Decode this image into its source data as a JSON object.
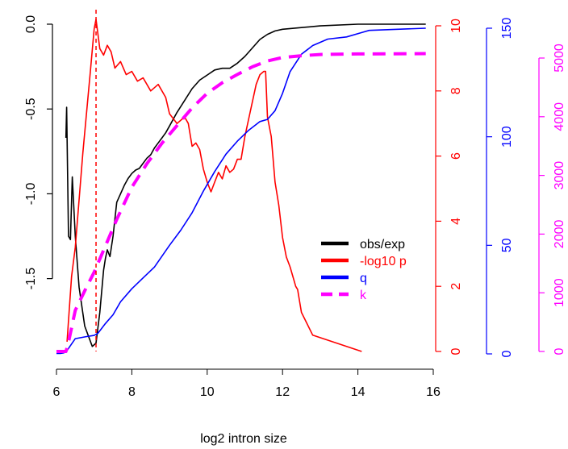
{
  "chart_data": {
    "type": "line",
    "title": "",
    "xlabel": "log2 intron size",
    "xlim": [
      6,
      16
    ],
    "x_ticks": [
      "6",
      "8",
      "10",
      "12",
      "14",
      "16"
    ],
    "reference_line": {
      "x": 7.05,
      "style": "dashed",
      "color": "#ff0000"
    },
    "axes": [
      {
        "id": "left",
        "label": "",
        "color": "#000000",
        "range": [
          -1.92,
          0.0
        ],
        "ticks": [
          "-1.5",
          "-1.0",
          "-0.5",
          "0.0"
        ],
        "tick_values": [
          -1.5,
          -1.0,
          -0.5,
          0.0
        ],
        "rotated_labels": true
      },
      {
        "id": "red",
        "label": "",
        "color": "#ff0000",
        "range": [
          0,
          10
        ],
        "ticks": [
          "0",
          "2",
          "4",
          "6",
          "8",
          "10"
        ],
        "tick_values": [
          0,
          2,
          4,
          6,
          8,
          10
        ]
      },
      {
        "id": "blue",
        "label": "",
        "color": "#0000ff",
        "range": [
          0,
          150
        ],
        "ticks": [
          "0",
          "50",
          "100",
          "150"
        ],
        "tick_values": [
          0,
          50,
          100,
          150
        ]
      },
      {
        "id": "magenta",
        "label": "",
        "color": "#ff00ff",
        "range": [
          0,
          5000
        ],
        "ticks": [
          "0",
          "1000",
          "2000",
          "3000",
          "4000",
          "5000"
        ],
        "tick_values": [
          0,
          1000,
          2000,
          3000,
          4000,
          5000
        ]
      }
    ],
    "series": [
      {
        "name": "obs/exp",
        "axis": "left",
        "color": "#000000",
        "dashed": false,
        "points": [
          [
            6.25,
            -0.67
          ],
          [
            6.27,
            -0.49
          ],
          [
            6.32,
            -1.25
          ],
          [
            6.37,
            -1.27
          ],
          [
            6.42,
            -0.9
          ],
          [
            6.5,
            -1.25
          ],
          [
            6.6,
            -1.55
          ],
          [
            6.75,
            -1.78
          ],
          [
            6.95,
            -1.9
          ],
          [
            7.05,
            -1.88
          ],
          [
            7.15,
            -1.7
          ],
          [
            7.25,
            -1.45
          ],
          [
            7.3,
            -1.38
          ],
          [
            7.35,
            -1.33
          ],
          [
            7.42,
            -1.37
          ],
          [
            7.5,
            -1.25
          ],
          [
            7.6,
            -1.05
          ],
          [
            7.7,
            -1.0
          ],
          [
            7.8,
            -0.95
          ],
          [
            7.9,
            -0.91
          ],
          [
            8.0,
            -0.88
          ],
          [
            8.1,
            -0.86
          ],
          [
            8.2,
            -0.85
          ],
          [
            8.3,
            -0.82
          ],
          [
            8.4,
            -0.79
          ],
          [
            8.5,
            -0.77
          ],
          [
            8.6,
            -0.73
          ],
          [
            8.7,
            -0.7
          ],
          [
            8.8,
            -0.67
          ],
          [
            8.9,
            -0.64
          ],
          [
            9.0,
            -0.6
          ],
          [
            9.2,
            -0.52
          ],
          [
            9.4,
            -0.45
          ],
          [
            9.6,
            -0.38
          ],
          [
            9.8,
            -0.33
          ],
          [
            10.0,
            -0.3
          ],
          [
            10.2,
            -0.27
          ],
          [
            10.4,
            -0.26
          ],
          [
            10.6,
            -0.26
          ],
          [
            10.8,
            -0.23
          ],
          [
            11.0,
            -0.19
          ],
          [
            11.2,
            -0.14
          ],
          [
            11.4,
            -0.09
          ],
          [
            11.6,
            -0.06
          ],
          [
            11.8,
            -0.04
          ],
          [
            12.0,
            -0.03
          ],
          [
            12.5,
            -0.02
          ],
          [
            13.0,
            -0.01
          ],
          [
            14.0,
            0.0
          ],
          [
            15.8,
            0.0
          ]
        ]
      },
      {
        "name": "-log10 p",
        "axis": "red",
        "color": "#ff0000",
        "dashed": false,
        "points": [
          [
            6.28,
            0.3
          ],
          [
            6.4,
            2.3
          ],
          [
            6.5,
            3.2
          ],
          [
            6.7,
            6.1
          ],
          [
            6.9,
            8.6
          ],
          [
            7.0,
            9.9
          ],
          [
            7.05,
            10.2
          ],
          [
            7.15,
            9.3
          ],
          [
            7.25,
            9.1
          ],
          [
            7.35,
            9.4
          ],
          [
            7.45,
            9.2
          ],
          [
            7.55,
            8.7
          ],
          [
            7.7,
            8.9
          ],
          [
            7.85,
            8.5
          ],
          [
            8.0,
            8.6
          ],
          [
            8.15,
            8.3
          ],
          [
            8.3,
            8.4
          ],
          [
            8.5,
            8.0
          ],
          [
            8.7,
            8.2
          ],
          [
            8.9,
            7.8
          ],
          [
            9.0,
            7.3
          ],
          [
            9.2,
            7.0
          ],
          [
            9.4,
            7.2
          ],
          [
            9.5,
            7.0
          ],
          [
            9.6,
            6.3
          ],
          [
            9.7,
            6.4
          ],
          [
            9.8,
            6.2
          ],
          [
            9.9,
            5.6
          ],
          [
            10.0,
            5.2
          ],
          [
            10.1,
            4.9
          ],
          [
            10.2,
            5.2
          ],
          [
            10.3,
            5.5
          ],
          [
            10.4,
            5.3
          ],
          [
            10.5,
            5.7
          ],
          [
            10.6,
            5.5
          ],
          [
            10.7,
            5.6
          ],
          [
            10.8,
            5.9
          ],
          [
            10.9,
            5.9
          ],
          [
            11.0,
            6.6
          ],
          [
            11.15,
            7.4
          ],
          [
            11.3,
            8.2
          ],
          [
            11.4,
            8.5
          ],
          [
            11.5,
            8.6
          ],
          [
            11.55,
            8.6
          ],
          [
            11.6,
            7.2
          ],
          [
            11.7,
            6.6
          ],
          [
            11.8,
            5.2
          ],
          [
            11.9,
            4.5
          ],
          [
            12.0,
            3.5
          ],
          [
            12.1,
            2.9
          ],
          [
            12.2,
            2.6
          ],
          [
            12.3,
            2.2
          ],
          [
            12.35,
            2.0
          ],
          [
            12.4,
            1.9
          ],
          [
            12.5,
            1.2
          ],
          [
            12.8,
            0.5
          ],
          [
            14.1,
            0.0
          ]
        ]
      },
      {
        "name": "q",
        "axis": "blue",
        "color": "#0000ff",
        "dashed": false,
        "points": [
          [
            6.0,
            0.2
          ],
          [
            6.1,
            0.2
          ],
          [
            6.2,
            0.5
          ],
          [
            6.3,
            2.0
          ],
          [
            6.5,
            7.0
          ],
          [
            6.8,
            8.0
          ],
          [
            7.0,
            8.5
          ],
          [
            7.1,
            9.5
          ],
          [
            7.3,
            14
          ],
          [
            7.5,
            18
          ],
          [
            7.7,
            24
          ],
          [
            8.0,
            30
          ],
          [
            8.3,
            35
          ],
          [
            8.6,
            40
          ],
          [
            9.0,
            50
          ],
          [
            9.3,
            57
          ],
          [
            9.6,
            65
          ],
          [
            9.9,
            75
          ],
          [
            10.2,
            84
          ],
          [
            10.5,
            92
          ],
          [
            10.8,
            98
          ],
          [
            11.1,
            103
          ],
          [
            11.4,
            107
          ],
          [
            11.6,
            108
          ],
          [
            11.8,
            112
          ],
          [
            12.0,
            120
          ],
          [
            12.2,
            130
          ],
          [
            12.5,
            138
          ],
          [
            12.8,
            142
          ],
          [
            13.2,
            145
          ],
          [
            13.7,
            146
          ],
          [
            14.1,
            148
          ],
          [
            14.3,
            149
          ],
          [
            15.8,
            150
          ]
        ]
      },
      {
        "name": "k",
        "axis": "magenta",
        "color": "#ff00ff",
        "dashed": true,
        "points": [
          [
            6.0,
            0
          ],
          [
            6.25,
            0
          ],
          [
            6.3,
            100
          ],
          [
            6.5,
            700
          ],
          [
            6.8,
            1100
          ],
          [
            7.0,
            1350
          ],
          [
            7.3,
            1800
          ],
          [
            7.6,
            2250
          ],
          [
            8.0,
            2800
          ],
          [
            8.4,
            3200
          ],
          [
            8.8,
            3550
          ],
          [
            9.2,
            3850
          ],
          [
            9.6,
            4150
          ],
          [
            10.0,
            4400
          ],
          [
            10.4,
            4580
          ],
          [
            10.8,
            4720
          ],
          [
            11.2,
            4850
          ],
          [
            11.6,
            4950
          ],
          [
            12.0,
            5010
          ],
          [
            12.5,
            5040
          ],
          [
            13.0,
            5060
          ],
          [
            14.0,
            5070
          ],
          [
            15.8,
            5075
          ]
        ]
      }
    ],
    "legend": {
      "position": "center-right",
      "entries": [
        {
          "label": "obs/exp",
          "color": "#000000",
          "dashed": false
        },
        {
          "label": "-log10 p",
          "color": "#ff0000",
          "dashed": false
        },
        {
          "label": "q",
          "color": "#0000ff",
          "dashed": false
        },
        {
          "label": "k",
          "color": "#ff00ff",
          "dashed": true
        }
      ]
    }
  }
}
